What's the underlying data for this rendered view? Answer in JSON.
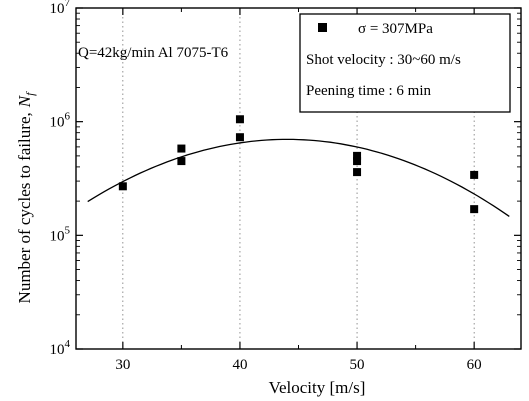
{
  "chart_data": {
    "type": "scatter",
    "xlabel": "Velocity [m/s]",
    "ylabel_text": "Number of cycles to failure,",
    "ylabel_symbol": "N",
    "ylabel_subscript": "f",
    "xlim": [
      26,
      64
    ],
    "ylim": [
      10000,
      10000000
    ],
    "yscale": "log",
    "xticks": [
      30,
      40,
      50,
      60
    ],
    "xtick_labels": [
      "30",
      "40",
      "50",
      "60"
    ],
    "yticks": [
      10000,
      100000,
      1000000,
      10000000
    ],
    "ytick_labels": [
      {
        "base": "10",
        "exp": "4"
      },
      {
        "base": "10",
        "exp": "5"
      },
      {
        "base": "10",
        "exp": "6"
      },
      {
        "base": "10",
        "exp": "7"
      }
    ],
    "annotation": "Q=42kg/min  Al 7075-T6",
    "legend": {
      "placement": "top-right",
      "series_label": "σ = 307MPa",
      "lines": [
        "Shot velocity : 30~60 m/s",
        "Peening time : 6 min"
      ]
    },
    "grid": "dashed vertical at x ticks",
    "series": [
      {
        "name": "σ = 307MPa",
        "marker": "square",
        "x": [
          30,
          35,
          35,
          40,
          40,
          50,
          50,
          50,
          60,
          60
        ],
        "y": [
          270000,
          450000,
          580000,
          1050000,
          730000,
          360000,
          450000,
          500000,
          340000,
          170000
        ]
      }
    ],
    "fit_curve": {
      "type": "quadratic (log y)",
      "x": [
        27,
        30,
        35,
        40,
        43,
        45,
        50,
        55,
        60,
        63
      ],
      "y": [
        205000,
        290000,
        480000,
        650000,
        695000,
        690000,
        600000,
        430000,
        235000,
        142000
      ]
    }
  }
}
